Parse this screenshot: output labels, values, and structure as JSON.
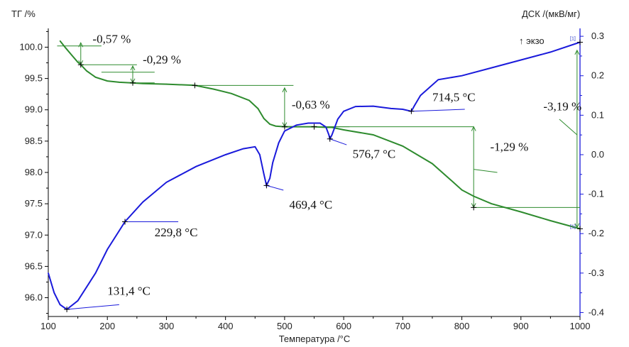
{
  "chart_data": {
    "type": "line",
    "xlabel": "Температура /°C",
    "ylabel_left": "ТГ /%",
    "ylabel_right": "ДСК /(мкВ/мг)",
    "exo_label": "↑ экзо",
    "xlim": [
      100,
      1000
    ],
    "ylim_left": [
      95.7,
      100.3
    ],
    "ylim_right": [
      -0.41,
      0.32
    ],
    "x_ticks": [
      "100",
      "200",
      "300",
      "400",
      "500",
      "600",
      "700",
      "800",
      "900",
      "1000"
    ],
    "y_left_ticks": [
      "96.0",
      "96.5",
      "97.0",
      "97.5",
      "98.0",
      "98.5",
      "99.0",
      "99.5",
      "100.0"
    ],
    "y_right_ticks": [
      "-0.4",
      "-0.3",
      "-0.2",
      "-0.1",
      "0.0",
      "0.1",
      "0.2",
      "0.3"
    ],
    "colors": {
      "tg": "#2e8b2e",
      "dsc": "#1a1adb",
      "frame": "#000000",
      "right_axis": "#1a1adb"
    },
    "series": [
      {
        "axis": "left",
        "x": [
          120,
          130,
          140,
          150,
          155,
          165,
          180,
          200,
          220,
          240,
          260,
          300,
          348,
          380,
          410,
          440,
          455,
          465,
          475,
          485,
          500,
          550,
          570,
          580,
          600,
          650,
          700,
          750,
          780,
          800,
          820,
          850,
          900,
          950,
          1000
        ],
        "y": [
          100.1,
          99.98,
          99.87,
          99.76,
          99.72,
          99.62,
          99.52,
          99.46,
          99.44,
          99.43,
          99.42,
          99.41,
          99.39,
          99.33,
          99.26,
          99.15,
          99.02,
          98.86,
          98.77,
          98.74,
          98.73,
          98.73,
          98.72,
          98.72,
          98.68,
          98.6,
          98.42,
          98.14,
          97.89,
          97.72,
          97.62,
          97.5,
          97.37,
          97.23,
          97.1
        ]
      },
      {
        "axis": "right",
        "x": [
          100,
          110,
          120,
          131.4,
          150,
          180,
          200,
          229.8,
          260,
          300,
          350,
          400,
          430,
          450,
          458,
          465,
          469.4,
          475,
          480,
          490,
          500,
          520,
          540,
          560,
          570,
          575,
          576.7,
          580,
          590,
          600,
          620,
          650,
          680,
          700,
          714.5,
          720,
          730,
          760,
          800,
          850,
          900,
          950,
          1000
        ],
        "y": [
          -0.3,
          -0.35,
          -0.38,
          -0.392,
          -0.37,
          -0.3,
          -0.24,
          -0.17,
          -0.12,
          -0.07,
          -0.03,
          0.0,
          0.015,
          0.02,
          0.0,
          -0.05,
          -0.078,
          -0.06,
          -0.02,
          0.03,
          0.06,
          0.075,
          0.08,
          0.08,
          0.07,
          0.05,
          0.04,
          0.05,
          0.09,
          0.11,
          0.122,
          0.123,
          0.117,
          0.115,
          0.11,
          0.125,
          0.15,
          0.19,
          0.2,
          0.22,
          0.24,
          0.26,
          0.285
        ]
      }
    ],
    "annotations": [
      {
        "text": "-0,57 %",
        "x": 175,
        "y": 100.07,
        "axis": "left"
      },
      {
        "text": "-0,29 %",
        "x": 260,
        "y": 99.74,
        "axis": "left"
      },
      {
        "text": "-0,63 %",
        "x": 512,
        "y": 99.02,
        "axis": "left"
      },
      {
        "text": "714,5 °C",
        "x": 750,
        "y": 0.136,
        "axis": "right"
      },
      {
        "text": "-3,19 %",
        "x": 938,
        "y": 0.112,
        "axis": "right"
      },
      {
        "text": "576,7 °C",
        "x": 615,
        "y": -0.008,
        "axis": "right"
      },
      {
        "text": "-1,29 %",
        "x": 848,
        "y": 0.01,
        "axis": "right"
      },
      {
        "text": "469,4 °C",
        "x": 508,
        "y": -0.137,
        "axis": "right"
      },
      {
        "text": "229,8 °C",
        "x": 280,
        "y": -0.207,
        "axis": "right"
      },
      {
        "text": "131,4 °C",
        "x": 200,
        "y": -0.355,
        "axis": "right"
      }
    ],
    "tg_steps": [
      {
        "x": 155,
        "y1": 100.07,
        "y2": 99.72
      },
      {
        "x": 243,
        "y1": 99.7,
        "y2": 99.43
      },
      {
        "x": 500,
        "y1": 99.35,
        "y2": 98.73
      },
      {
        "x": 820,
        "y1": 98.73,
        "y2": 97.44
      },
      {
        "x": 995,
        "y1": 99.95,
        "y2": 97.12
      }
    ],
    "tg_hlines": [
      {
        "x1": 115,
        "x2": 190,
        "y": 100.02
      },
      {
        "x1": 155,
        "x2": 250,
        "y": 99.72
      },
      {
        "x1": 190,
        "x2": 280,
        "y": 99.6
      },
      {
        "x1": 243,
        "x2": 280,
        "y": 99.43
      },
      {
        "x1": 348,
        "x2": 515,
        "y": 99.39
      },
      {
        "x1": 500,
        "x2": 610,
        "y": 98.73
      },
      {
        "x1": 550,
        "x2": 820,
        "y": 98.73
      },
      {
        "x1": 820,
        "x2": 1000,
        "y": 97.44
      }
    ],
    "dsc_leaders": [
      {
        "x1": 131.4,
        "y1": -0.392,
        "x2": 220,
        "y2": -0.38
      },
      {
        "x1": 229.8,
        "y1": -0.17,
        "x2": 320,
        "y2": -0.17
      },
      {
        "x1": 469.4,
        "y1": -0.078,
        "x2": 498,
        "y2": -0.09
      },
      {
        "x1": 576.7,
        "y1": 0.04,
        "x2": 605,
        "y2": 0.025
      },
      {
        "x1": 714.5,
        "y1": 0.11,
        "x2": 805,
        "y2": 0.115
      }
    ],
    "tg_leaders": [
      {
        "x1": 820,
        "y1": 98.05,
        "x2": 860,
        "y2": 98.0
      },
      {
        "x1": 995,
        "y1": 98.6,
        "x2": 965,
        "y2": 98.85
      }
    ],
    "marker_dsc": [
      [
        131.4,
        -0.392
      ],
      [
        229.8,
        -0.17
      ],
      [
        469.4,
        -0.078
      ],
      [
        576.7,
        0.04
      ],
      [
        714.5,
        0.11
      ],
      [
        1000,
        0.285
      ]
    ],
    "marker_tg": [
      [
        155,
        99.72
      ],
      [
        243,
        99.43
      ],
      [
        348,
        99.39
      ],
      [
        500,
        98.73
      ],
      [
        550,
        98.73
      ],
      [
        820,
        97.44
      ],
      [
        1000,
        97.1
      ]
    ],
    "end_labels": [
      "[1]",
      "[1]"
    ]
  }
}
